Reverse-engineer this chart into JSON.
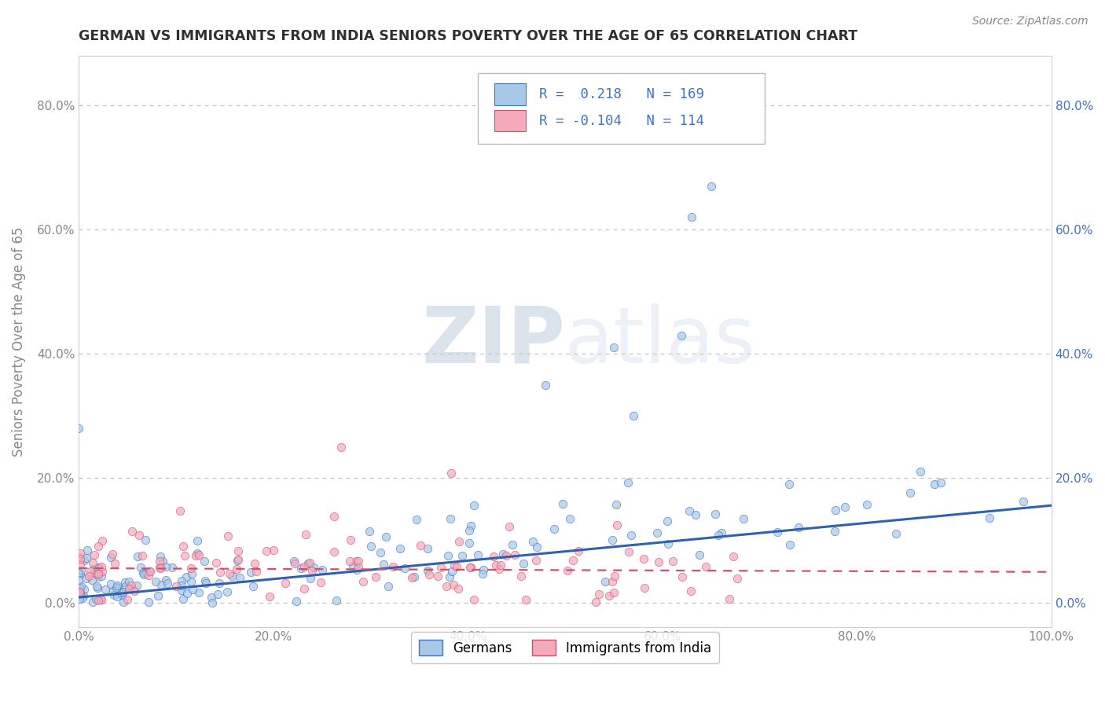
{
  "title": "GERMAN VS IMMIGRANTS FROM INDIA SENIORS POVERTY OVER THE AGE OF 65 CORRELATION CHART",
  "source": "Source: ZipAtlas.com",
  "ylabel": "Seniors Poverty Over the Age of 65",
  "xlabel": "",
  "xlim": [
    0.0,
    1.0
  ],
  "ylim": [
    -0.04,
    0.88
  ],
  "yticks": [
    0.0,
    0.2,
    0.4,
    0.6,
    0.8
  ],
  "xticks": [
    0.0,
    0.2,
    0.4,
    0.6,
    0.8,
    1.0
  ],
  "legend_label1": "Germans",
  "legend_label2": "Immigrants from India",
  "color_blue": "#A8C8E8",
  "color_pink": "#F4AABB",
  "color_blue_edge": "#4472C4",
  "color_pink_edge": "#D05070",
  "line_blue": "#3060B0",
  "line_pink": "#D05070",
  "watermark_color": "#C8D8E8",
  "background_color": "#FFFFFF",
  "grid_color": "#BBBBBB",
  "title_color": "#303030",
  "axis_color": "#888888",
  "right_axis_color": "#4472C4",
  "scatter_alpha": 0.7,
  "scatter_size": 55,
  "seed": 7,
  "n_blue": 169,
  "n_pink": 114,
  "slope_blue": 0.148,
  "intercept_blue": 0.008,
  "slope_pink": -0.006,
  "intercept_pink": 0.055
}
